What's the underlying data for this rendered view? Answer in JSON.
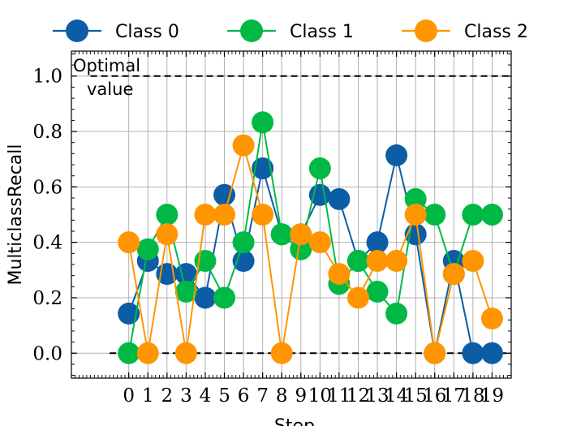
{
  "chart_data": {
    "type": "line",
    "xlabel": "Step",
    "ylabel": "MulticlassRecall",
    "x": [
      0,
      1,
      2,
      3,
      4,
      5,
      6,
      7,
      8,
      9,
      10,
      11,
      12,
      13,
      14,
      15,
      16,
      17,
      18,
      19
    ],
    "xticks": [
      "0",
      "1",
      "2",
      "3",
      "4",
      "5",
      "6",
      "7",
      "8",
      "9",
      "10",
      "11",
      "12",
      "13",
      "14",
      "15",
      "16",
      "17",
      "18",
      "19"
    ],
    "xlim": [
      -3,
      20
    ],
    "ylim": [
      -0.09,
      1.09
    ],
    "yticks": [
      "0.0",
      "0.2",
      "0.4",
      "0.6",
      "0.8",
      "1.0"
    ],
    "grid": true,
    "legend_position": "top",
    "series": [
      {
        "name": "Class 0",
        "color": "#0C5DA5",
        "values": [
          0.143,
          0.333,
          0.286,
          0.286,
          0.2,
          0.571,
          0.333,
          0.667,
          0.429,
          0.429,
          0.571,
          0.556,
          0.333,
          0.4,
          0.714,
          0.429,
          0.0,
          0.333,
          0.0,
          0.0
        ]
      },
      {
        "name": "Class 1",
        "color": "#00B945",
        "values": [
          0.0,
          0.375,
          0.5,
          0.222,
          0.333,
          0.2,
          0.4,
          0.833,
          0.429,
          0.375,
          0.667,
          0.25,
          0.333,
          0.222,
          0.143,
          0.556,
          0.5,
          0.286,
          0.5,
          0.5
        ]
      },
      {
        "name": "Class 2",
        "color": "#FF9500",
        "values": [
          0.4,
          0.0,
          0.429,
          0.0,
          0.5,
          0.5,
          0.75,
          0.5,
          0.0,
          0.429,
          0.4,
          0.286,
          0.2,
          0.333,
          0.333,
          0.5,
          0.0,
          0.286,
          0.333,
          0.125
        ]
      }
    ],
    "reference_lines": [
      {
        "y": 1.0,
        "style": "dashed",
        "label": "Optimal value"
      },
      {
        "y": 0.0,
        "style": "dashed",
        "label": ""
      }
    ],
    "annotation": {
      "line1": "Optimal",
      "line2": "value"
    }
  }
}
